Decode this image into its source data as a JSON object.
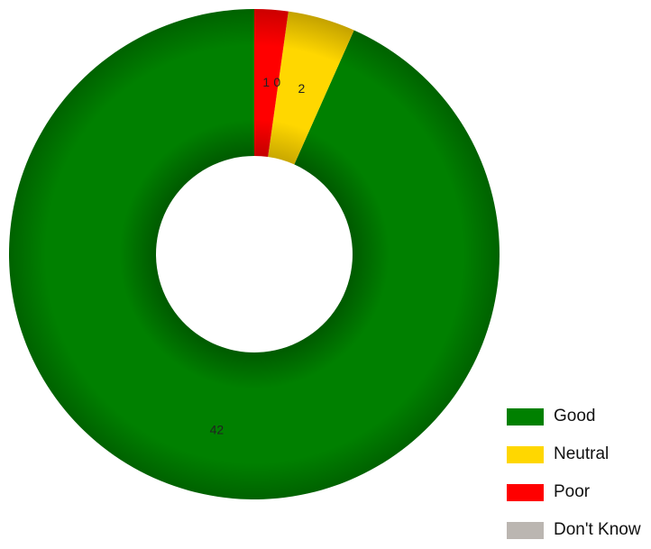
{
  "chart_data": {
    "type": "pie",
    "style": "donut",
    "categories": [
      "Good",
      "Neutral",
      "Poor",
      "Don't Know"
    ],
    "values": [
      42,
      2,
      1,
      0
    ],
    "colors": [
      "#008000",
      "#ffd700",
      "#ff0000",
      "#bbb6b1"
    ],
    "data_labels": [
      "42",
      "2",
      "1",
      "0"
    ],
    "legend_position": "bottom-right"
  }
}
